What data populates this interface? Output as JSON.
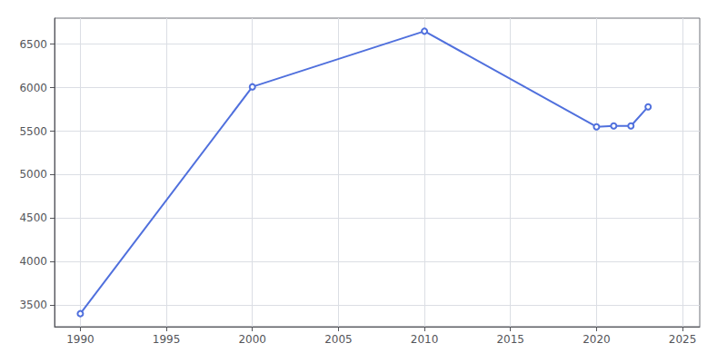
{
  "chart_data": {
    "type": "line",
    "x": [
      1990,
      2000,
      2010,
      2020,
      2021,
      2022,
      2023
    ],
    "values": [
      3400,
      6010,
      6650,
      5550,
      5560,
      5560,
      5780
    ],
    "xlim": [
      1988.5,
      2026
    ],
    "xticks": [
      1990,
      1995,
      2000,
      2005,
      2010,
      2015,
      2020,
      2025
    ],
    "ylim": [
      3250,
      6800
    ],
    "yticks": [
      3500,
      4000,
      4500,
      5000,
      5500,
      6000,
      6500
    ],
    "grid": true
  }
}
